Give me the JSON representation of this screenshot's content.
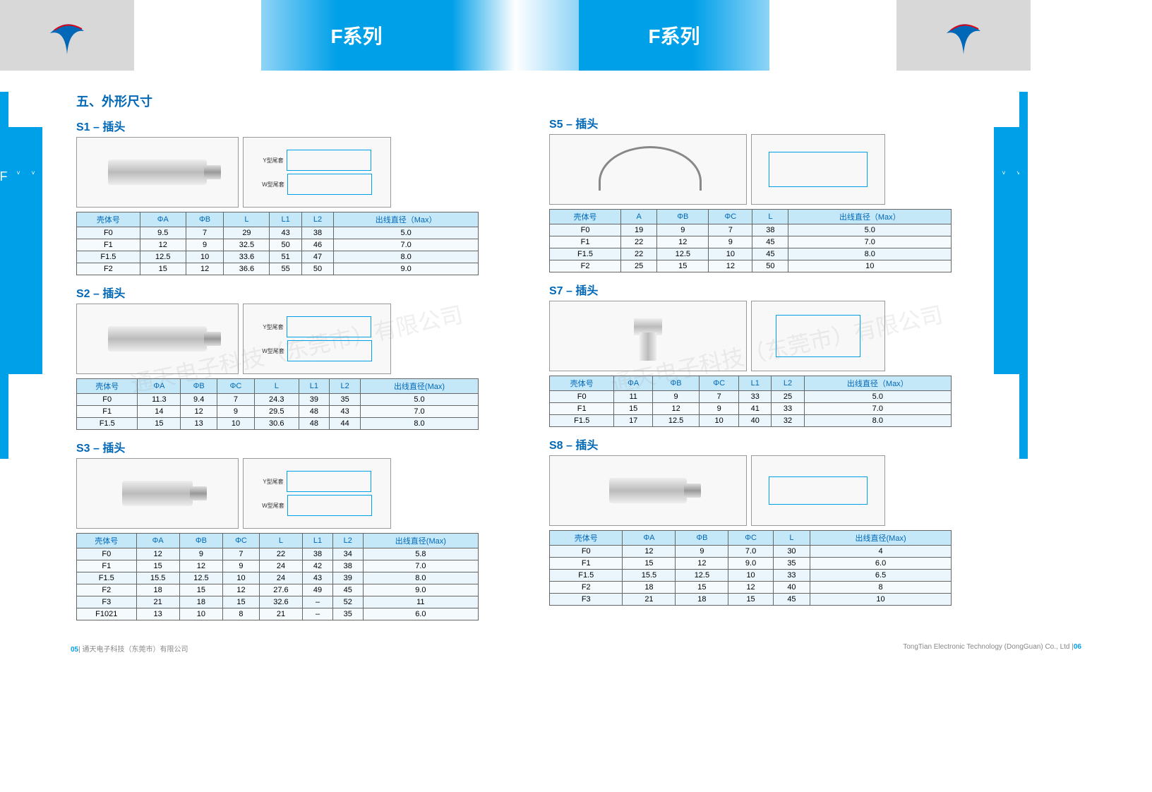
{
  "header": {
    "title_left": "F系列",
    "title_right": "F系列"
  },
  "side_tab": {
    "text": "通天　F系列",
    "chev": "˅˅˅"
  },
  "page_left": {
    "main_title": "五、外形尺寸",
    "footer": "通天电子科技（东莞市）有限公司",
    "page_num": "05"
  },
  "page_right": {
    "footer": "TongTian Electronic Technology (DongGuan) Co., Ltd",
    "page_num": "06"
  },
  "diagram_labels": {
    "y": "Y型尾套",
    "w": "W型尾套"
  },
  "colors": {
    "brand_blue": "#00a0e9",
    "title_blue": "#0068b7",
    "th_bg": "#c5e8f9",
    "td_bg": "#eaf5fc"
  },
  "watermark": "通天电子科技（东莞市）有限公司",
  "s1": {
    "title": "S1 – 插头",
    "columns": [
      "壳体号",
      "ΦA",
      "ΦB",
      "L",
      "L1",
      "L2",
      "出线直径（Max）"
    ],
    "rows": [
      [
        "F0",
        "9.5",
        "7",
        "29",
        "43",
        "38",
        "5.0"
      ],
      [
        "F1",
        "12",
        "9",
        "32.5",
        "50",
        "46",
        "7.0"
      ],
      [
        "F1.5",
        "12.5",
        "10",
        "33.6",
        "51",
        "47",
        "8.0"
      ],
      [
        "F2",
        "15",
        "12",
        "36.6",
        "55",
        "50",
        "9.0"
      ]
    ]
  },
  "s2": {
    "title": "S2 – 插头",
    "columns": [
      "壳体号",
      "ΦA",
      "ΦB",
      "ΦC",
      "L",
      "L1",
      "L2",
      "出线直径(Max)"
    ],
    "rows": [
      [
        "F0",
        "11.3",
        "9.4",
        "7",
        "24.3",
        "39",
        "35",
        "5.0"
      ],
      [
        "F1",
        "14",
        "12",
        "9",
        "29.5",
        "48",
        "43",
        "7.0"
      ],
      [
        "F1.5",
        "15",
        "13",
        "10",
        "30.6",
        "48",
        "44",
        "8.0"
      ]
    ]
  },
  "s3": {
    "title": "S3 – 插头",
    "columns": [
      "壳体号",
      "ΦA",
      "ΦB",
      "ΦC",
      "L",
      "L1",
      "L2",
      "出线直径(Max)"
    ],
    "rows": [
      [
        "F0",
        "12",
        "9",
        "7",
        "22",
        "38",
        "34",
        "5.8"
      ],
      [
        "F1",
        "15",
        "12",
        "9",
        "24",
        "42",
        "38",
        "7.0"
      ],
      [
        "F1.5",
        "15.5",
        "12.5",
        "10",
        "24",
        "43",
        "39",
        "8.0"
      ],
      [
        "F2",
        "18",
        "15",
        "12",
        "27.6",
        "49",
        "45",
        "9.0"
      ],
      [
        "F3",
        "21",
        "18",
        "15",
        "32.6",
        "–",
        "52",
        "11"
      ],
      [
        "F1021",
        "13",
        "10",
        "8",
        "21",
        "–",
        "35",
        "6.0"
      ]
    ]
  },
  "s5": {
    "title": "S5 – 插头",
    "columns": [
      "壳体号",
      "A",
      "ΦB",
      "ΦC",
      "L",
      "出线直径（Max）"
    ],
    "rows": [
      [
        "F0",
        "19",
        "9",
        "7",
        "38",
        "5.0"
      ],
      [
        "F1",
        "22",
        "12",
        "9",
        "45",
        "7.0"
      ],
      [
        "F1.5",
        "22",
        "12.5",
        "10",
        "45",
        "8.0"
      ],
      [
        "F2",
        "25",
        "15",
        "12",
        "50",
        "10"
      ]
    ]
  },
  "s7": {
    "title": "S7 – 插头",
    "columns": [
      "壳体号",
      "ΦA",
      "ΦB",
      "ΦC",
      "L1",
      "L2",
      "出线直径（Max）"
    ],
    "rows": [
      [
        "F0",
        "11",
        "9",
        "7",
        "33",
        "25",
        "5.0"
      ],
      [
        "F1",
        "15",
        "12",
        "9",
        "41",
        "33",
        "7.0"
      ],
      [
        "F1.5",
        "17",
        "12.5",
        "10",
        "40",
        "32",
        "8.0"
      ]
    ]
  },
  "s8": {
    "title": "S8 – 插头",
    "columns": [
      "壳体号",
      "ΦA",
      "ΦB",
      "ΦC",
      "L",
      "出线直径(Max)"
    ],
    "rows": [
      [
        "F0",
        "12",
        "9",
        "7.0",
        "30",
        "4"
      ],
      [
        "F1",
        "15",
        "12",
        "9.0",
        "35",
        "6.0"
      ],
      [
        "F1.5",
        "15.5",
        "12.5",
        "10",
        "33",
        "6.5"
      ],
      [
        "F2",
        "18",
        "15",
        "12",
        "40",
        "8"
      ],
      [
        "F3",
        "21",
        "18",
        "15",
        "45",
        "10"
      ]
    ]
  }
}
